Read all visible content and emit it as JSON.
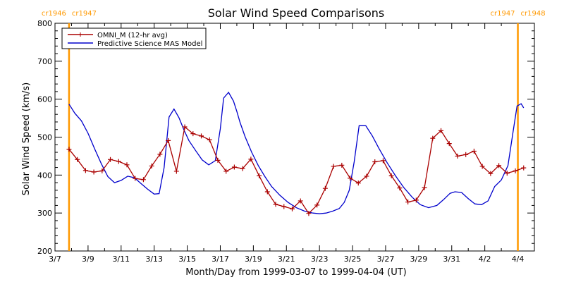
{
  "chart_data": {
    "type": "line",
    "title": "Solar Wind Speed Comparisons",
    "xlabel": "Month/Day from 1999-03-07 to 1999-04-04 (UT)",
    "ylabel": "Solar Wind Speed (km/s)",
    "x_unit": "days since 1999-03-07",
    "xlim": [
      0,
      29
    ],
    "ylim": [
      200,
      800
    ],
    "x_ticks": [
      {
        "pos": 0,
        "label": "3/7"
      },
      {
        "pos": 2,
        "label": "3/9"
      },
      {
        "pos": 4,
        "label": "3/11"
      },
      {
        "pos": 6,
        "label": "3/13"
      },
      {
        "pos": 8,
        "label": "3/15"
      },
      {
        "pos": 10,
        "label": "3/17"
      },
      {
        "pos": 12,
        "label": "3/19"
      },
      {
        "pos": 14,
        "label": "3/21"
      },
      {
        "pos": 16,
        "label": "3/23"
      },
      {
        "pos": 18,
        "label": "3/25"
      },
      {
        "pos": 20,
        "label": "3/27"
      },
      {
        "pos": 22,
        "label": "3/29"
      },
      {
        "pos": 24,
        "label": "3/31"
      },
      {
        "pos": 26,
        "label": "4/2"
      },
      {
        "pos": 28,
        "label": "4/4"
      }
    ],
    "y_ticks": [
      200,
      300,
      400,
      500,
      600,
      700,
      800
    ],
    "legend": {
      "position": "top-left",
      "box": true
    },
    "carrington_markers": [
      {
        "x": 0.85,
        "label_left": "cr1946",
        "label_right": "cr1947",
        "color": "#ff9900"
      },
      {
        "x": 28.0,
        "label_left": "cr1947",
        "label_right": "cr1948",
        "color": "#ff9900"
      }
    ],
    "series": [
      {
        "name": "OMNI_M (12-hr avg)",
        "color": "#aa0000",
        "marker": "plus",
        "x": [
          0.85,
          1.35,
          1.85,
          2.35,
          2.85,
          3.35,
          3.85,
          4.35,
          4.85,
          5.35,
          5.85,
          6.35,
          6.85,
          7.35,
          7.85,
          8.35,
          8.85,
          9.35,
          9.85,
          10.35,
          10.85,
          11.35,
          11.85,
          12.35,
          12.85,
          13.35,
          13.85,
          14.35,
          14.85,
          15.35,
          15.85,
          16.35,
          16.85,
          17.35,
          17.85,
          18.35,
          18.85,
          19.35,
          19.85,
          20.35,
          20.85,
          21.35,
          21.85,
          22.35,
          22.85,
          23.35,
          23.85,
          24.35,
          24.85,
          25.35,
          25.85,
          26.35,
          26.85,
          27.35,
          27.85,
          28.35
        ],
        "y": [
          468,
          441,
          412,
          408,
          411,
          441,
          436,
          427,
          391,
          388,
          424,
          455,
          491,
          410,
          527,
          509,
          503,
          493,
          439,
          410,
          421,
          417,
          442,
          398,
          356,
          323,
          317,
          311,
          332,
          299,
          321,
          365,
          423,
          426,
          392,
          379,
          397,
          435,
          438,
          398,
          366,
          329,
          334,
          367,
          497,
          517,
          483,
          450,
          454,
          463,
          423,
          404,
          425,
          405,
          411,
          419
        ]
      },
      {
        "name": "Predictive Science MAS Model",
        "color": "#0000cc",
        "marker": "none",
        "x": [
          0.85,
          1.2,
          1.6,
          2.0,
          2.4,
          2.8,
          3.2,
          3.6,
          4.0,
          4.4,
          4.8,
          5.2,
          5.6,
          6.0,
          6.3,
          6.6,
          6.9,
          7.2,
          7.5,
          7.8,
          8.1,
          8.5,
          8.9,
          9.3,
          9.7,
          10.0,
          10.2,
          10.5,
          10.8,
          11.0,
          11.2,
          11.5,
          11.9,
          12.3,
          12.7,
          13.1,
          13.6,
          14.1,
          14.6,
          15.1,
          15.6,
          16.0,
          16.4,
          16.8,
          17.2,
          17.5,
          17.8,
          18.1,
          18.4,
          18.8,
          19.2,
          19.6,
          20.1,
          20.6,
          21.1,
          21.6,
          22.1,
          22.6,
          23.1,
          23.5,
          23.9,
          24.2,
          24.6,
          25.0,
          25.4,
          25.8,
          26.2,
          26.6,
          27.0,
          27.4,
          27.7,
          27.95,
          28.2,
          28.35
        ],
        "y": [
          587,
          563,
          543,
          510,
          469,
          430,
          396,
          380,
          386,
          397,
          393,
          378,
          363,
          350,
          351,
          420,
          553,
          574,
          551,
          519,
          491,
          465,
          440,
          427,
          438,
          522,
          603,
          618,
          595,
          568,
          538,
          501,
          460,
          425,
          396,
          370,
          347,
          328,
          314,
          305,
          300,
          298,
          300,
          305,
          312,
          328,
          360,
          435,
          530,
          530,
          503,
          470,
          432,
          398,
          367,
          342,
          322,
          314,
          320,
          335,
          352,
          356,
          354,
          338,
          324,
          322,
          332,
          370,
          387,
          425,
          511,
          582,
          588,
          577
        ]
      }
    ]
  }
}
